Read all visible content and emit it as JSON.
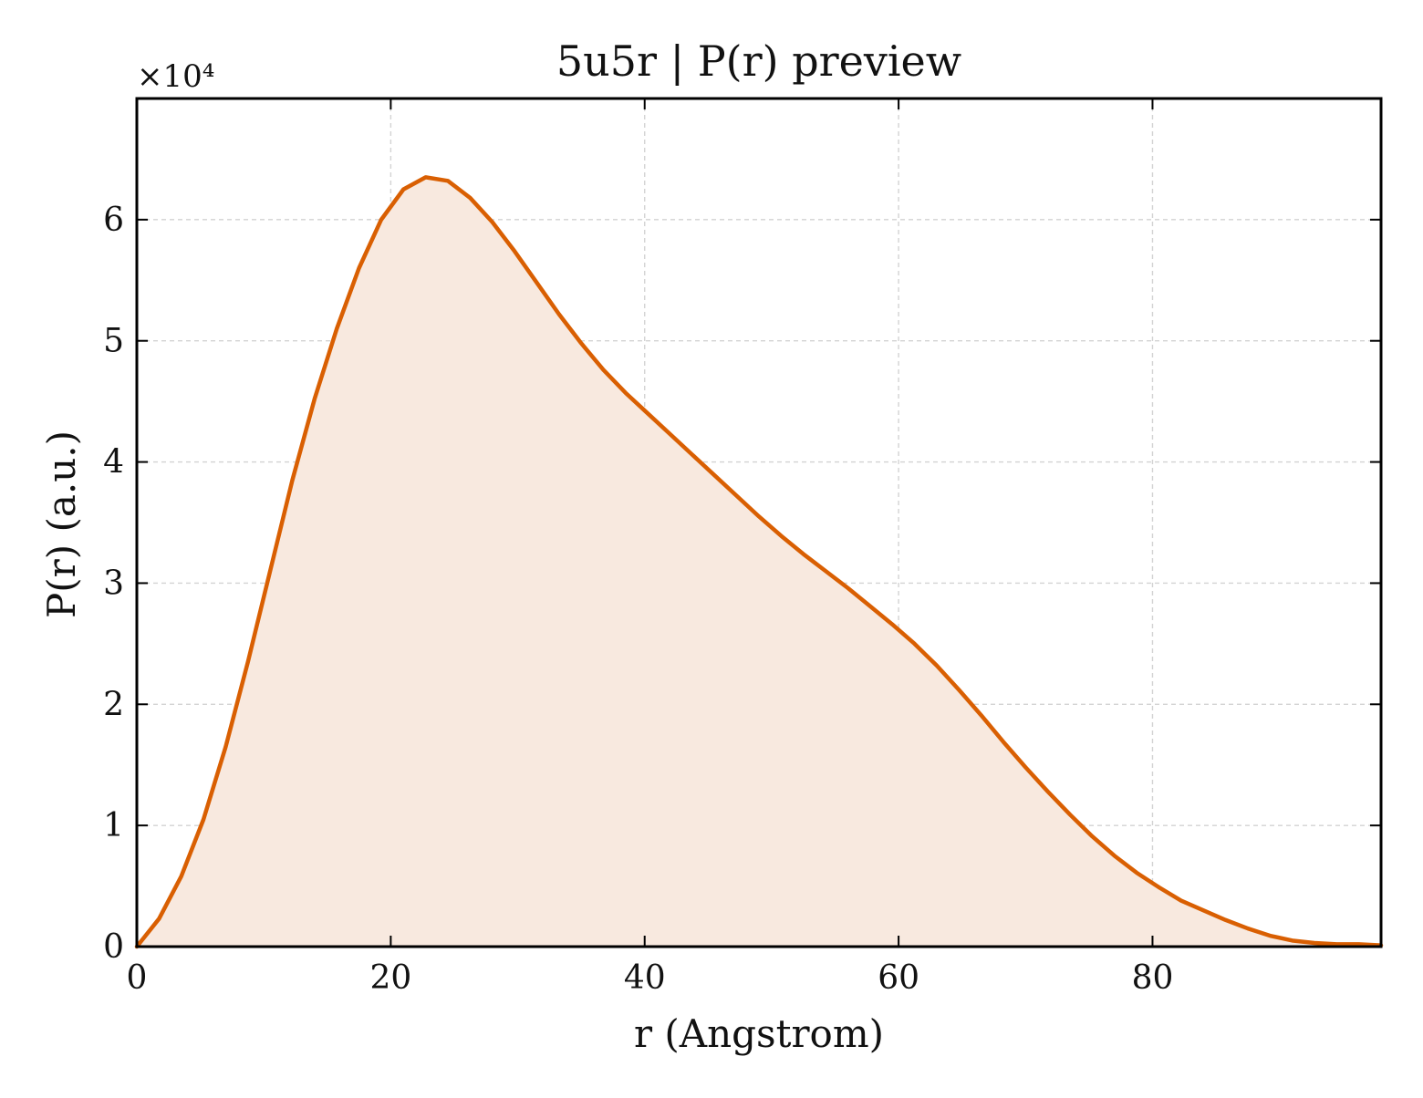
{
  "chart_data": {
    "type": "area",
    "title": "5u5r | P(r) preview",
    "xlabel": "r (Angstrom)",
    "ylabel": "P(r) (a.u.)",
    "y_multiplier_label": "×10⁴",
    "xlim": [
      0,
      98
    ],
    "ylim": [
      0,
      7
    ],
    "x_ticks": [
      0,
      20,
      40,
      60,
      80
    ],
    "y_ticks": [
      0,
      1,
      2,
      3,
      4,
      5,
      6
    ],
    "x_tick_labels": [
      "0",
      "20",
      "40",
      "60",
      "80"
    ],
    "y_tick_labels": [
      "0",
      "1",
      "2",
      "3",
      "4",
      "5",
      "6"
    ],
    "grid": true,
    "legend": "none",
    "colors": {
      "line": "#d95f02",
      "fill": "#f8e9df",
      "grid": "#d3d3d3",
      "axes": "#000000"
    },
    "series": [
      {
        "x": [
          0,
          1.75,
          3.5,
          5.25,
          7.0,
          8.75,
          10.5,
          12.25,
          14.0,
          15.75,
          17.5,
          19.25,
          21.0,
          22.75,
          24.5,
          26.25,
          28.0,
          29.75,
          31.5,
          33.25,
          35.0,
          36.75,
          38.5,
          40.25,
          42.0,
          43.75,
          45.5,
          47.25,
          49.0,
          50.75,
          52.5,
          54.25,
          56.0,
          57.75,
          59.5,
          61.25,
          63.0,
          64.75,
          66.5,
          68.25,
          70.0,
          71.75,
          73.5,
          75.25,
          77.0,
          78.75,
          80.5,
          82.25,
          84.0,
          85.75,
          87.5,
          89.25,
          91.0,
          92.75,
          94.5,
          96.25,
          98.0
        ],
        "values": [
          0,
          0.23,
          0.58,
          1.05,
          1.65,
          2.35,
          3.1,
          3.85,
          4.52,
          5.1,
          5.6,
          6.0,
          6.25,
          6.35,
          6.32,
          6.18,
          5.98,
          5.74,
          5.48,
          5.22,
          4.98,
          4.76,
          4.57,
          4.4,
          4.23,
          4.06,
          3.89,
          3.72,
          3.55,
          3.39,
          3.24,
          3.1,
          2.96,
          2.81,
          2.66,
          2.5,
          2.32,
          2.12,
          1.91,
          1.69,
          1.48,
          1.28,
          1.09,
          0.91,
          0.75,
          0.61,
          0.49,
          0.38,
          0.3,
          0.22,
          0.15,
          0.09,
          0.05,
          0.03,
          0.02,
          0.02,
          0.01
        ]
      }
    ]
  }
}
